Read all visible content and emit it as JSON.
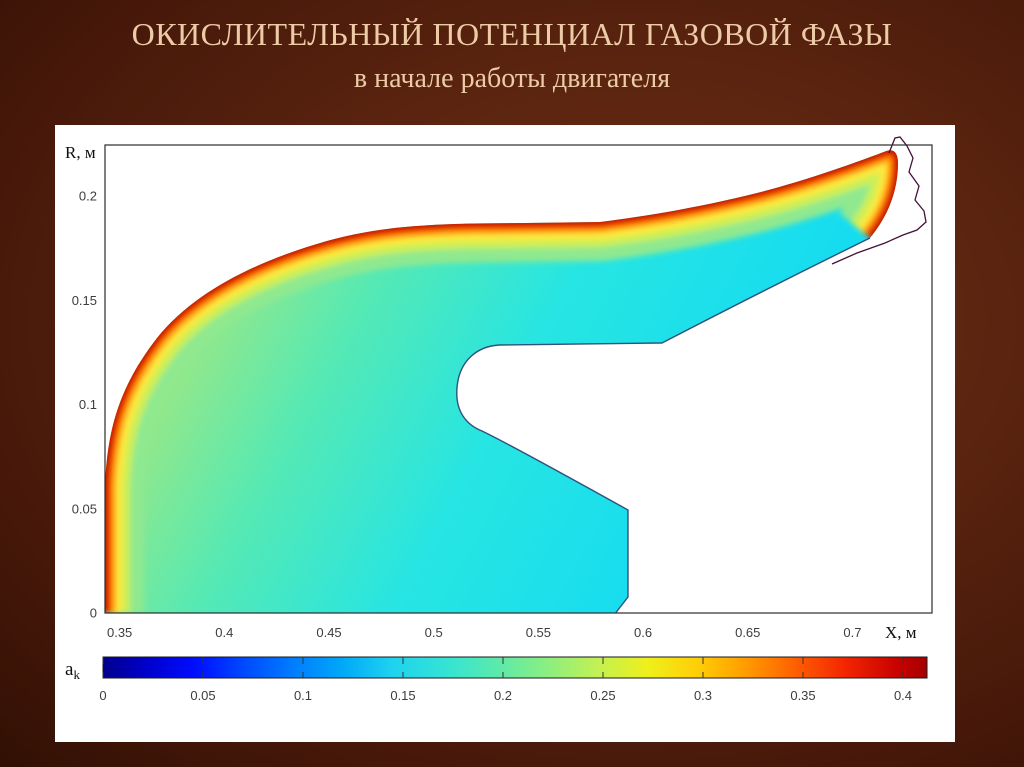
{
  "slide": {
    "title_line1": "ОКИСЛИТЕЛЬНЫЙ ПОТЕНЦИАЛ ГАЗОВОЙ ФАЗЫ",
    "title_line2": "в начале работы двигателя",
    "title_color": "#edcba6",
    "background_color": "#5c2510",
    "panel_color": "#ffffff"
  },
  "chart_data": {
    "type": "heatmap",
    "title": "",
    "x_axis": {
      "label": "X, м",
      "range": [
        0.343,
        0.738
      ],
      "ticks": [
        {
          "v": 0.35,
          "label": "0.35"
        },
        {
          "v": 0.4,
          "label": "0.4"
        },
        {
          "v": 0.45,
          "label": "0.45"
        },
        {
          "v": 0.5,
          "label": "0.5"
        },
        {
          "v": 0.55,
          "label": "0.55"
        },
        {
          "v": 0.6,
          "label": "0.6"
        },
        {
          "v": 0.65,
          "label": "0.65"
        },
        {
          "v": 0.7,
          "label": "0.7"
        }
      ]
    },
    "y_axis": {
      "label": "R, м",
      "range": [
        0,
        0.2245
      ],
      "ticks": [
        {
          "v": 0,
          "label": "0"
        },
        {
          "v": 0.05,
          "label": "0.05"
        },
        {
          "v": 0.1,
          "label": "0.1"
        },
        {
          "v": 0.15,
          "label": "0.15"
        },
        {
          "v": 0.2,
          "label": "0.2"
        }
      ]
    },
    "colorbar": {
      "label_main": "a",
      "label_sub": "k",
      "range": [
        0,
        0.412
      ],
      "colormap": "jet",
      "stops": [
        "#00008c",
        "#0000c8",
        "#000cff",
        "#0048ff",
        "#007cff",
        "#00a8f8",
        "#1ed2f0",
        "#36e4d2",
        "#5ceaaa",
        "#8cee80",
        "#c2f153",
        "#eef01c",
        "#ffcf06",
        "#ff9c00",
        "#ff5f00",
        "#f32600",
        "#cb0300",
        "#a50000"
      ],
      "ticks": [
        {
          "v": 0,
          "label": "0"
        },
        {
          "v": 0.05,
          "label": "0.05"
        },
        {
          "v": 0.1,
          "label": "0.1"
        },
        {
          "v": 0.15,
          "label": "0.15"
        },
        {
          "v": 0.2,
          "label": "0.2"
        },
        {
          "v": 0.25,
          "label": "0.25"
        },
        {
          "v": 0.3,
          "label": "0.3"
        },
        {
          "v": 0.35,
          "label": "0.35"
        },
        {
          "v": 0.4,
          "label": "0.4"
        }
      ]
    },
    "field": {
      "quantity": "a_k (oxidizer potential of gas phase)",
      "interior_value_range": [
        0.15,
        0.2
      ],
      "interior_color": "cyan",
      "wall_layer_values": [
        0.25,
        0.4
      ],
      "wall_layer_colors": [
        "yellow-green",
        "yellow",
        "orange",
        "red",
        "dark red"
      ],
      "description": "Hook-shaped duct cross-section: field ≈0.15–0.20 (cyan/green) in the interior, rising sharply through 0.25–0.35 to ≈0.40 in a thin layer along the outer wall (left arc and upper edge up to the nozzle tip). Inner cavity boundary and lower edges are thin dark contour lines; an unfilled thin contour outlines the nozzle exit beyond the colored tip at top right."
    },
    "region_boundary_XR": [
      [
        0.343,
        0.0
      ],
      [
        0.343,
        0.064
      ],
      [
        0.357,
        0.116
      ],
      [
        0.372,
        0.135
      ],
      [
        0.391,
        0.152
      ],
      [
        0.412,
        0.166
      ],
      [
        0.436,
        0.175
      ],
      [
        0.465,
        0.181
      ],
      [
        0.517,
        0.187
      ],
      [
        0.579,
        0.188
      ],
      [
        0.627,
        0.195
      ],
      [
        0.656,
        0.202
      ],
      [
        0.684,
        0.21
      ],
      [
        0.717,
        0.222
      ],
      [
        0.722,
        0.215
      ],
      [
        0.719,
        0.196
      ],
      [
        0.708,
        0.18
      ],
      [
        0.637,
        0.143
      ],
      [
        0.609,
        0.13
      ],
      [
        0.532,
        0.129
      ],
      [
        0.511,
        0.107
      ],
      [
        0.521,
        0.089
      ],
      [
        0.541,
        0.077
      ],
      [
        0.565,
        0.065
      ],
      [
        0.593,
        0.049
      ],
      [
        0.593,
        0.008
      ],
      [
        0.587,
        0.0
      ]
    ]
  }
}
